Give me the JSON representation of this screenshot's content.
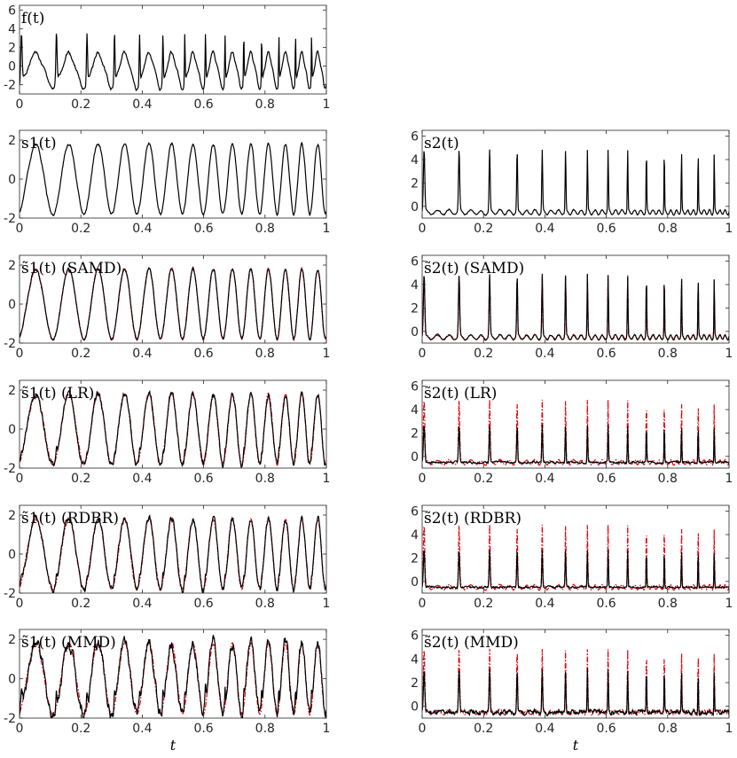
{
  "colors": {
    "axis": "#262626",
    "primary_line": "#000000",
    "overlay_line": "#e8000b"
  },
  "chart_data": [
    {
      "id": "f",
      "type": "line",
      "title": "",
      "label": "f(t)",
      "xlabel": "",
      "ylabel": "",
      "xlim": [
        0,
        1
      ],
      "ylim": [
        -3,
        6.5
      ],
      "yticks": [
        -2,
        0,
        2,
        4,
        6
      ],
      "xticks": [
        0,
        0.2,
        0.4,
        0.6,
        0.8,
        1
      ],
      "xtick_labels": [
        "0",
        "0.2",
        "0.4",
        "0.6",
        "0.8",
        "1"
      ],
      "ytick_labels": [
        "-2",
        "0",
        "2",
        "4",
        "6"
      ],
      "grid": false,
      "series": [
        {
          "style": "solid",
          "color": "#000000",
          "kind": "sum",
          "seed": 1
        }
      ]
    },
    {
      "id": "s1",
      "type": "line",
      "title": "",
      "label": "s1(t)",
      "xlabel": "",
      "ylabel": "",
      "xlim": [
        0,
        1
      ],
      "ylim": [
        -2,
        2.5
      ],
      "yticks": [
        -2,
        0,
        2
      ],
      "xticks": [
        0,
        0.2,
        0.4,
        0.6,
        0.8,
        1
      ],
      "xtick_labels": [
        "0",
        "0.2",
        "0.4",
        "0.6",
        "0.8",
        "1"
      ],
      "ytick_labels": [
        "-2",
        "0",
        "2"
      ],
      "grid": false,
      "series": [
        {
          "style": "solid",
          "color": "#000000",
          "kind": "s1",
          "seed": 2
        }
      ]
    },
    {
      "id": "s2",
      "type": "line",
      "title": "",
      "label": "s2(t)",
      "xlabel": "",
      "ylabel": "",
      "xlim": [
        0,
        1
      ],
      "ylim": [
        -1,
        6.5
      ],
      "yticks": [
        0,
        2,
        4,
        6
      ],
      "xticks": [
        0,
        0.2,
        0.4,
        0.6,
        0.8,
        1
      ],
      "xtick_labels": [
        "0",
        "0.2",
        "0.4",
        "0.6",
        "0.8",
        "1"
      ],
      "ytick_labels": [
        "0",
        "2",
        "4",
        "6"
      ],
      "grid": false,
      "series": [
        {
          "style": "solid",
          "color": "#000000",
          "kind": "s2",
          "seed": 3
        }
      ]
    },
    {
      "id": "s1_samd",
      "type": "line",
      "title": "",
      "label": "s̃1(t) (SAMD)",
      "xlabel": "",
      "ylabel": "",
      "xlim": [
        0,
        1
      ],
      "ylim": [
        -2,
        2.5
      ],
      "yticks": [
        -2,
        0,
        2
      ],
      "xticks": [
        0,
        0.2,
        0.4,
        0.6,
        0.8,
        1
      ],
      "xtick_labels": [
        "0",
        "0.2",
        "0.4",
        "0.6",
        "0.8",
        "1"
      ],
      "ytick_labels": [
        "-2",
        "0",
        "2"
      ],
      "grid": false,
      "series": [
        {
          "style": "dashdot",
          "color": "#e8000b",
          "kind": "s1",
          "seed": 2
        },
        {
          "style": "solid",
          "color": "#000000",
          "kind": "s1",
          "seed": 4
        }
      ]
    },
    {
      "id": "s2_samd",
      "type": "line",
      "title": "",
      "label": "s̃2(t) (SAMD)",
      "xlabel": "",
      "ylabel": "",
      "xlim": [
        0,
        1
      ],
      "ylim": [
        -1,
        6.5
      ],
      "yticks": [
        0,
        2,
        4,
        6
      ],
      "xticks": [
        0,
        0.2,
        0.4,
        0.6,
        0.8,
        1
      ],
      "xtick_labels": [
        "0",
        "0.2",
        "0.4",
        "0.6",
        "0.8",
        "1"
      ],
      "ytick_labels": [
        "0",
        "2",
        "4",
        "6"
      ],
      "grid": false,
      "series": [
        {
          "style": "dashdot",
          "color": "#e8000b",
          "kind": "s2",
          "seed": 3
        },
        {
          "style": "solid",
          "color": "#000000",
          "kind": "s2",
          "seed": 5
        }
      ]
    },
    {
      "id": "s1_lr",
      "type": "line",
      "title": "",
      "label": "s̃1(t) (LR)",
      "xlabel": "",
      "ylabel": "",
      "xlim": [
        0,
        1
      ],
      "ylim": [
        -2,
        2.5
      ],
      "yticks": [
        -2,
        0,
        2
      ],
      "xticks": [
        0,
        0.2,
        0.4,
        0.6,
        0.8,
        1
      ],
      "xtick_labels": [
        "0",
        "0.2",
        "0.4",
        "0.6",
        "0.8",
        "1"
      ],
      "ytick_labels": [
        "-2",
        "0",
        "2"
      ],
      "grid": false,
      "series": [
        {
          "style": "dashdot",
          "color": "#e8000b",
          "kind": "s1",
          "seed": 2
        },
        {
          "style": "solid",
          "color": "#000000",
          "kind": "s1lr",
          "seed": 6
        }
      ]
    },
    {
      "id": "s2_lr",
      "type": "line",
      "title": "",
      "label": "s̃2(t) (LR)",
      "xlabel": "",
      "ylabel": "",
      "xlim": [
        0,
        1
      ],
      "ylim": [
        -1,
        6.5
      ],
      "yticks": [
        0,
        2,
        4,
        6
      ],
      "xticks": [
        0,
        0.2,
        0.4,
        0.6,
        0.8,
        1
      ],
      "xtick_labels": [
        "0",
        "0.2",
        "0.4",
        "0.6",
        "0.8",
        "1"
      ],
      "ytick_labels": [
        "0",
        "2",
        "4",
        "6"
      ],
      "grid": false,
      "series": [
        {
          "style": "dashdot",
          "color": "#e8000b",
          "kind": "s2",
          "seed": 3
        },
        {
          "style": "solid",
          "color": "#000000",
          "kind": "s2lr",
          "seed": 7
        }
      ]
    },
    {
      "id": "s1_rdbr",
      "type": "line",
      "title": "",
      "label": "s̃1(t) (RDBR)",
      "xlabel": "",
      "ylabel": "",
      "xlim": [
        0,
        1
      ],
      "ylim": [
        -2,
        2.5
      ],
      "yticks": [
        -2,
        0,
        2
      ],
      "xticks": [
        0,
        0.2,
        0.4,
        0.6,
        0.8,
        1
      ],
      "xtick_labels": [
        "0",
        "0.2",
        "0.4",
        "0.6",
        "0.8",
        "1"
      ],
      "ytick_labels": [
        "-2",
        "0",
        "2"
      ],
      "grid": false,
      "series": [
        {
          "style": "dashdot",
          "color": "#e8000b",
          "kind": "s1",
          "seed": 2
        },
        {
          "style": "solid",
          "color": "#000000",
          "kind": "s1lr",
          "seed": 8
        }
      ]
    },
    {
      "id": "s2_rdbr",
      "type": "line",
      "title": "",
      "label": "s̃2(t) (RDBR)",
      "xlabel": "",
      "ylabel": "",
      "xlim": [
        0,
        1
      ],
      "ylim": [
        -1,
        6.5
      ],
      "yticks": [
        0,
        2,
        4,
        6
      ],
      "xticks": [
        0,
        0.2,
        0.4,
        0.6,
        0.8,
        1
      ],
      "xtick_labels": [
        "0",
        "0.2",
        "0.4",
        "0.6",
        "0.8",
        "1"
      ],
      "ytick_labels": [
        "0",
        "2",
        "4",
        "6"
      ],
      "grid": false,
      "series": [
        {
          "style": "dashdot",
          "color": "#e8000b",
          "kind": "s2",
          "seed": 3
        },
        {
          "style": "solid",
          "color": "#000000",
          "kind": "s2lr",
          "seed": 9
        }
      ]
    },
    {
      "id": "s1_mmd",
      "type": "line",
      "title": "",
      "label": "s̃1(t) (MMD)",
      "xlabel": "t",
      "ylabel": "",
      "xlim": [
        0,
        1
      ],
      "ylim": [
        -2,
        2.5
      ],
      "yticks": [
        -2,
        0,
        2
      ],
      "xticks": [
        0,
        0.2,
        0.4,
        0.6,
        0.8,
        1
      ],
      "xtick_labels": [
        "0",
        "0.2",
        "0.4",
        "0.6",
        "0.8",
        "1"
      ],
      "ytick_labels": [
        "-2",
        "0",
        "2"
      ],
      "grid": false,
      "series": [
        {
          "style": "dashdot",
          "color": "#e8000b",
          "kind": "s1",
          "seed": 2
        },
        {
          "style": "solid",
          "color": "#000000",
          "kind": "s1mmd",
          "seed": 10
        }
      ]
    },
    {
      "id": "s2_mmd",
      "type": "line",
      "title": "",
      "label": "s̃2(t) (MMD)",
      "xlabel": "t",
      "ylabel": "",
      "xlim": [
        0,
        1
      ],
      "ylim": [
        -1,
        6.5
      ],
      "yticks": [
        0,
        2,
        4,
        6
      ],
      "xticks": [
        0,
        0.2,
        0.4,
        0.6,
        0.8,
        1
      ],
      "xtick_labels": [
        "0",
        "0.2",
        "0.4",
        "0.6",
        "0.8",
        "1"
      ],
      "ytick_labels": [
        "0",
        "2",
        "4",
        "6"
      ],
      "grid": false,
      "series": [
        {
          "style": "dashdot",
          "color": "#e8000b",
          "kind": "s2",
          "seed": 3
        },
        {
          "style": "solid",
          "color": "#000000",
          "kind": "s2mmd",
          "seed": 11
        }
      ]
    }
  ]
}
